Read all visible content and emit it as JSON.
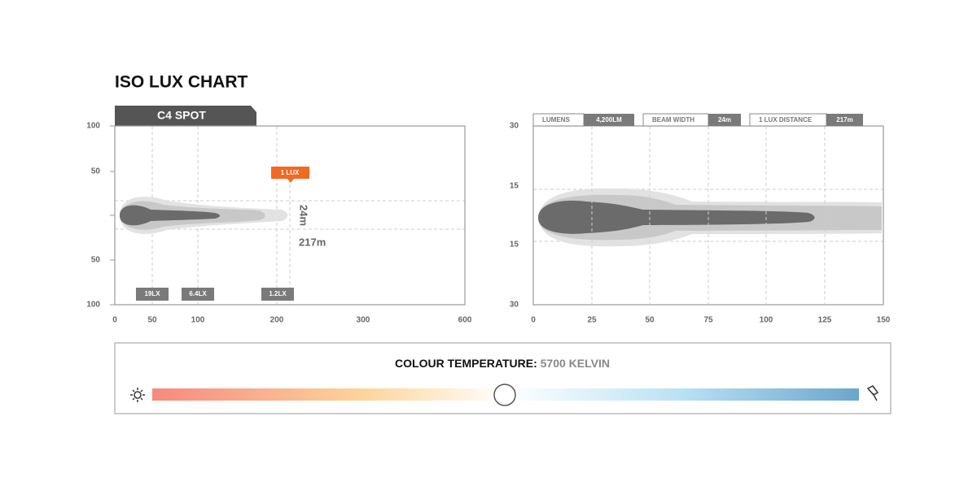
{
  "title": "ISO LUX CHART",
  "product_tab": "C4 SPOT",
  "left_chart": {
    "yticks": [
      "100",
      "50",
      "50",
      "100"
    ],
    "xticks": [
      "0",
      "50",
      "100",
      "200",
      "300",
      "600"
    ],
    "callout": "1 LUX",
    "beam_width": "24m",
    "distance": "217m",
    "lux_badges": [
      "19LX",
      "6.4LX",
      "1.2LX"
    ]
  },
  "right_chart": {
    "stats": [
      {
        "label": "LUMENS",
        "value": "4,200LM"
      },
      {
        "label": "BEAM WIDTH",
        "value": "24m"
      },
      {
        "label": "1 LUX DISTANCE",
        "value": "217m"
      }
    ],
    "yticks": [
      "30",
      "15",
      "15",
      "30"
    ],
    "xticks": [
      "0",
      "25",
      "50",
      "75",
      "100",
      "125",
      "150"
    ]
  },
  "colour_temperature": {
    "label": "COLOUR TEMPERATURE:",
    "value": "5700 KELVIN"
  }
}
